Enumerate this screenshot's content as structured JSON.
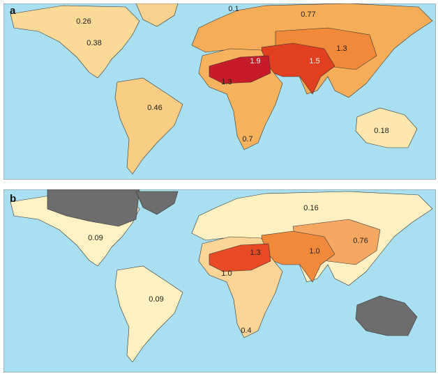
{
  "panels": [
    {
      "label": "a",
      "region_labels": [
        "0.1",
        "0.26",
        "0.77",
        "0.38",
        "1.9",
        "1.5",
        "1.3",
        "1.3",
        "0.46",
        "0.7",
        "0.18"
      ]
    },
    {
      "label": "b",
      "region_labels": [
        "0.16",
        "0.09",
        "0.76",
        "1.3",
        "1.0",
        "1.0",
        "0.09",
        "0.4"
      ]
    }
  ]
}
